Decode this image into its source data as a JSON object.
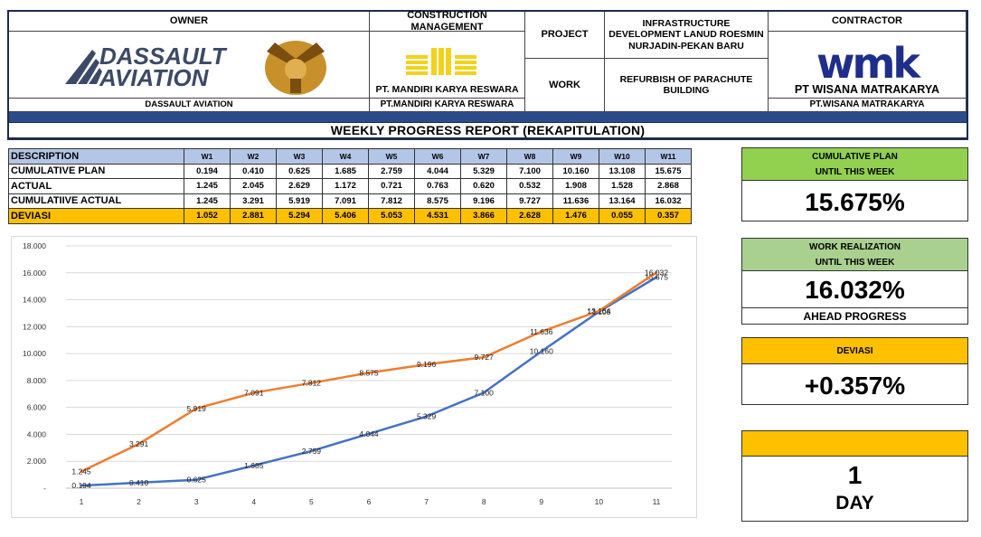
{
  "header": {
    "owner_label": "OWNER",
    "owner_name": "DASSAULT AVIATION",
    "owner_logo_text_1": "DASSAULT",
    "owner_logo_text_2": "AVIATION",
    "cm_label": "CONSTRUCTION MANAGEMENT",
    "cm_logo_caption": "PT. MANDIRI KARYA RESWARA",
    "cm_name": "PT.MANDIRI KARYA RESWARA",
    "project_label": "PROJECT",
    "project_value": "INFRASTRUCTURE DEVELOPMENT LANUD ROESMIN NURJADIN-PEKAN BARU",
    "work_label": "WORK",
    "work_value": "REFURBISH OF PARACHUTE BUILDING",
    "contractor_label": "CONTRACTOR",
    "contractor_logo_text": "wmk",
    "contractor_logo_caption": "PT WISANA MATRAKARYA",
    "contractor_name": "PT.WISANA MATRAKARYA",
    "report_title": "WEEKLY PROGRESS REPORT (REKAPITULATION)"
  },
  "table": {
    "headers": [
      "DESCRIPTION",
      "W1",
      "W2",
      "W3",
      "W4",
      "W5",
      "W6",
      "W7",
      "W8",
      "W9",
      "W10",
      "W11"
    ],
    "rows": [
      {
        "label": "CUMULATIVE PLAN",
        "values": [
          "0.194",
          "0.410",
          "0.625",
          "1.685",
          "2.759",
          "4.044",
          "5.329",
          "7.100",
          "10.160",
          "13.108",
          "15.675"
        ]
      },
      {
        "label": "ACTUAL",
        "values": [
          "1.245",
          "2.045",
          "2.629",
          "1.172",
          "0.721",
          "0.763",
          "0.620",
          "0.532",
          "1.908",
          "1.528",
          "2.868"
        ]
      },
      {
        "label": "CUMULATIIVE ACTUAL",
        "values": [
          "1.245",
          "3.291",
          "5.919",
          "7.091",
          "7.812",
          "8.575",
          "9.196",
          "9.727",
          "11.636",
          "13.164",
          "16.032"
        ]
      },
      {
        "label": "DEVIASI",
        "values": [
          "1.052",
          "2.881",
          "5.294",
          "5.406",
          "5.053",
          "4.531",
          "3.866",
          "2.628",
          "1.476",
          "0.055",
          "0.357"
        ]
      }
    ]
  },
  "chart_data": {
    "type": "line",
    "x": [
      1,
      2,
      3,
      4,
      5,
      6,
      7,
      8,
      9,
      10,
      11
    ],
    "ylim": [
      0,
      18
    ],
    "yticks": [
      "-",
      "2.000",
      "4.000",
      "6.000",
      "8.000",
      "10.000",
      "12.000",
      "14.000",
      "16.000",
      "18.000"
    ],
    "grid": true,
    "series": [
      {
        "color": "#4472c4",
        "values": [
          0.194,
          0.41,
          0.625,
          1.685,
          2.759,
          4.044,
          5.329,
          7.1,
          10.16,
          13.108,
          15.675
        ],
        "labels": [
          "0.194",
          "0.410",
          "0.625",
          "1.685",
          "2.759",
          "4.044",
          "5.329",
          "7.100",
          "10.160",
          "13.108",
          "15.675"
        ]
      },
      {
        "color": "#ed7d31",
        "values": [
          1.245,
          3.291,
          5.919,
          7.091,
          7.812,
          8.575,
          9.196,
          9.727,
          11.636,
          13.164,
          16.032
        ],
        "labels": [
          "1.245",
          "3.291",
          "5.919",
          "7.091",
          "7.812",
          "8.575",
          "9.196",
          "9.727",
          "11.636",
          "13.164",
          "16.032"
        ]
      }
    ]
  },
  "panels": {
    "plan_title_1": "CUMULATIVE PLAN",
    "plan_title_2": "UNTIL THIS WEEK",
    "plan_value": "15.675%",
    "plan_color": "#92d050",
    "real_title_1": "WORK REALIZATION",
    "real_title_2": "UNTIL THIS WEEK",
    "real_value": "16.032%",
    "real_status": "AHEAD PROGRESS",
    "real_color": "#a9d08e",
    "dev_title": "DEVIASI",
    "dev_value": "+0.357%",
    "dev_color": "#ffc000",
    "day_value": "1",
    "day_unit": "DAY",
    "day_color": "#ffc000"
  }
}
